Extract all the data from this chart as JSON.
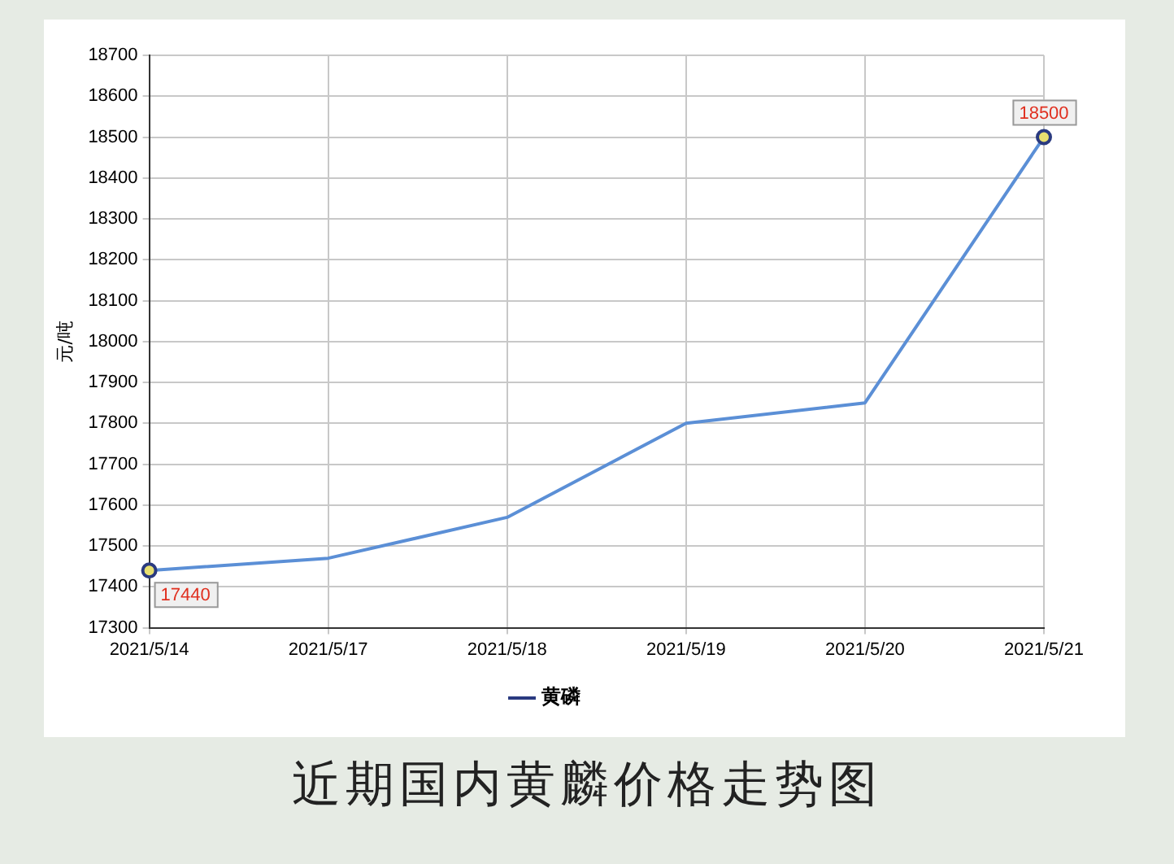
{
  "chart_data": {
    "type": "line",
    "title": "近期国内黄麟价格走势图",
    "ylabel": "元/吨",
    "categories": [
      "2021/5/14",
      "2021/5/17",
      "2021/5/18",
      "2021/5/19",
      "2021/5/20",
      "2021/5/21"
    ],
    "series": [
      {
        "name": "黄磷",
        "color": "#5b8fd6",
        "values": [
          17440,
          17470,
          17570,
          17800,
          17850,
          18500
        ],
        "value_labels": [
          "17440",
          null,
          null,
          null,
          null,
          "18500"
        ]
      }
    ],
    "ylim": [
      17300,
      18700
    ],
    "yticks": [
      17300,
      17400,
      17500,
      17600,
      17700,
      17800,
      17900,
      18000,
      18100,
      18200,
      18300,
      18400,
      18500,
      18600,
      18700
    ],
    "grid": true,
    "legend": "bottom",
    "line_style": "solid"
  }
}
